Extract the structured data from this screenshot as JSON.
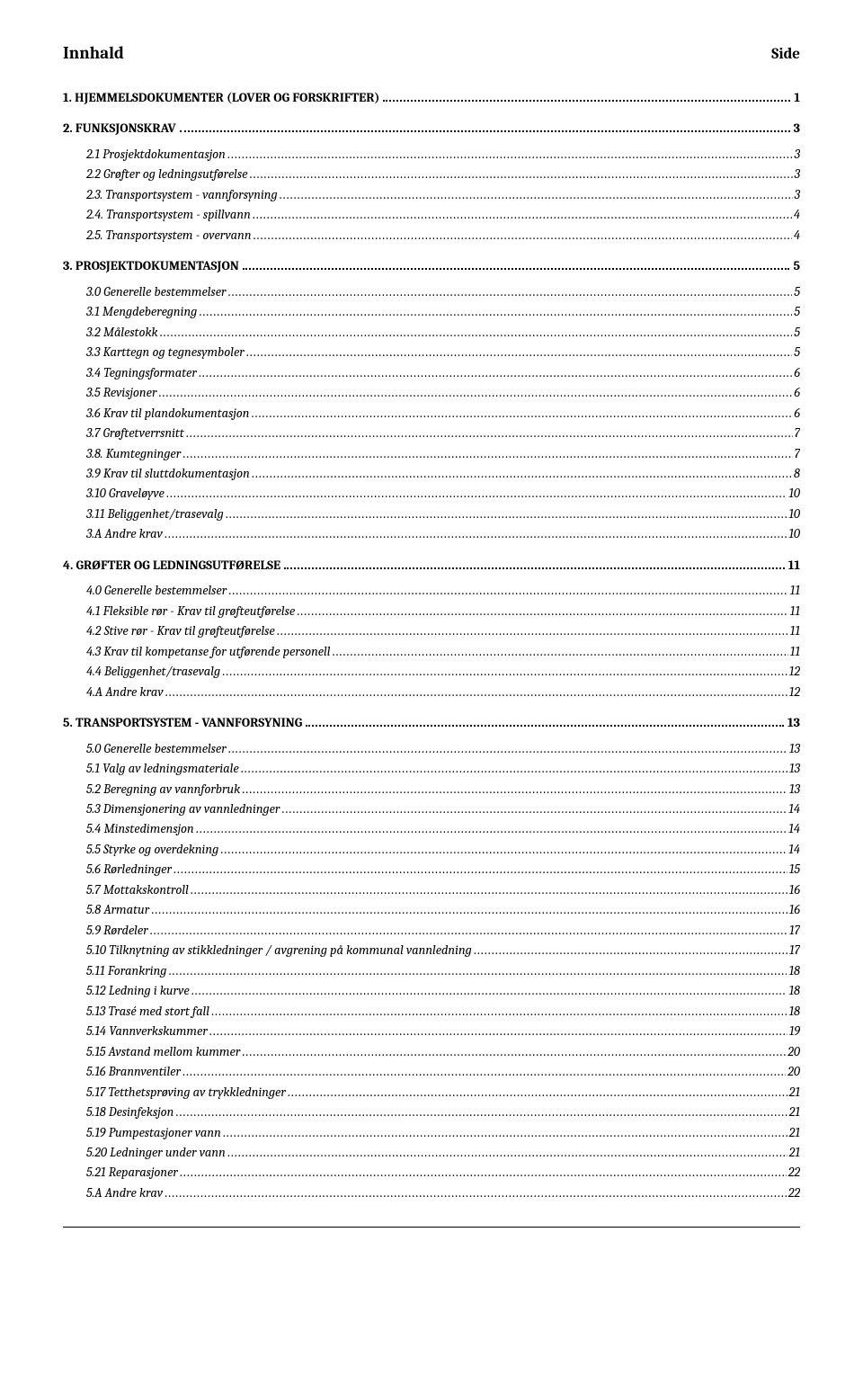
{
  "header": {
    "left": "Innhald",
    "right": "Side"
  },
  "toc": [
    {
      "level": 0,
      "label": "1. HJEMMELSDOKUMENTER (LOVER OG FORSKRIFTER)",
      "page": "1"
    },
    {
      "level": 0,
      "label": "2. FUNKSJONSKRAV",
      "page": "3"
    },
    {
      "level": 1,
      "label": "2.1 Prosjektdokumentasjon",
      "page": "3"
    },
    {
      "level": 1,
      "label": "2.2 Grøfter og ledningsutførelse",
      "page": "3"
    },
    {
      "level": 1,
      "label": "2.3. Transportsystem - vannforsyning",
      "page": "3"
    },
    {
      "level": 1,
      "label": "2.4. Transportsystem - spillvann",
      "page": "4"
    },
    {
      "level": 1,
      "label": "2.5. Transportsystem - overvann",
      "page": "4"
    },
    {
      "level": 0,
      "label": "3. PROSJEKTDOKUMENTASJON",
      "page": "5"
    },
    {
      "level": 1,
      "label": "3.0 Generelle bestemmelser",
      "page": "5"
    },
    {
      "level": 1,
      "label": "3.1 Mengdeberegning",
      "page": "5"
    },
    {
      "level": 1,
      "label": "3.2 Målestokk",
      "page": "5"
    },
    {
      "level": 1,
      "label": "3.3 Karttegn og tegnesymboler",
      "page": "5"
    },
    {
      "level": 1,
      "label": "3.4 Tegningsformater",
      "page": "6"
    },
    {
      "level": 1,
      "label": "3.5 Revisjoner",
      "page": "6"
    },
    {
      "level": 1,
      "label": "3.6 Krav til plandokumentasjon",
      "page": "6"
    },
    {
      "level": 1,
      "label": "3.7 Grøftetverrsnitt",
      "page": "7"
    },
    {
      "level": 1,
      "label": "3.8. Kumtegninger",
      "page": "7"
    },
    {
      "level": 1,
      "label": "3.9 Krav til sluttdokumentasjon",
      "page": "8"
    },
    {
      "level": 1,
      "label": "3.10 Graveløyve",
      "page": "10"
    },
    {
      "level": 1,
      "label": "3.11 Beliggenhet/trasevalg",
      "page": "10"
    },
    {
      "level": 1,
      "label": "3.A Andre krav",
      "page": "10"
    },
    {
      "level": 0,
      "label": "4. GRØFTER OG LEDNINGSUTFØRELSE",
      "page": "11"
    },
    {
      "level": 1,
      "label": "4.0 Generelle bestemmelser",
      "page": "11"
    },
    {
      "level": 1,
      "label": "4.1 Fleksible rør - Krav til grøfteutførelse",
      "page": "11"
    },
    {
      "level": 1,
      "label": "4.2 Stive rør - Krav til grøfteutførelse",
      "page": "11"
    },
    {
      "level": 1,
      "label": "4.3 Krav til kompetanse for utførende personell",
      "page": "11"
    },
    {
      "level": 1,
      "label": "4.4 Beliggenhet/trasevalg",
      "page": "12"
    },
    {
      "level": 1,
      "label": "4.A Andre krav",
      "page": "12"
    },
    {
      "level": 0,
      "label": "5. TRANSPORTSYSTEM - VANNFORSYNING",
      "page": "13"
    },
    {
      "level": 1,
      "label": "5.0 Generelle bestemmelser",
      "page": "13"
    },
    {
      "level": 1,
      "label": "5.1 Valg av ledningsmateriale",
      "page": "13"
    },
    {
      "level": 1,
      "label": "5.2 Beregning av vannforbruk",
      "page": "13"
    },
    {
      "level": 1,
      "label": "5.3 Dimensjonering av vannledninger",
      "page": "14"
    },
    {
      "level": 1,
      "label": "5.4 Minstedimensjon",
      "page": "14"
    },
    {
      "level": 1,
      "label": "5.5 Styrke og overdekning",
      "page": "14"
    },
    {
      "level": 1,
      "label": "5.6 Rørledninger",
      "page": "15"
    },
    {
      "level": 1,
      "label": "5.7 Mottakskontroll",
      "page": "16"
    },
    {
      "level": 1,
      "label": "5.8 Armatur",
      "page": "16"
    },
    {
      "level": 1,
      "label": "5.9 Rørdeler",
      "page": "17"
    },
    {
      "level": 1,
      "label": "5.10 Tilknytning av stikkledninger / avgrening på kommunal vannledning",
      "page": "17"
    },
    {
      "level": 1,
      "label": "5.11 Forankring",
      "page": "18"
    },
    {
      "level": 1,
      "label": "5.12 Ledning i kurve",
      "page": "18"
    },
    {
      "level": 1,
      "label": "5.13 Trasé med stort fall",
      "page": "18"
    },
    {
      "level": 1,
      "label": "5.14 Vannverkskummer",
      "page": "19"
    },
    {
      "level": 1,
      "label": "5.15 Avstand mellom kummer",
      "page": "20"
    },
    {
      "level": 1,
      "label": "5.16 Brannventiler",
      "page": "20"
    },
    {
      "level": 1,
      "label": "5.17 Tetthetsprøving av trykkledninger",
      "page": "21"
    },
    {
      "level": 1,
      "label": "5.18 Desinfeksjon",
      "page": "21"
    },
    {
      "level": 1,
      "label": "5.19 Pumpestasjoner vann",
      "page": "21"
    },
    {
      "level": 1,
      "label": "5.20 Ledninger under vann",
      "page": "21"
    },
    {
      "level": 1,
      "label": "5.21 Reparasjoner",
      "page": "22"
    },
    {
      "level": 1,
      "label": "5.A Andre krav",
      "page": "22"
    }
  ]
}
